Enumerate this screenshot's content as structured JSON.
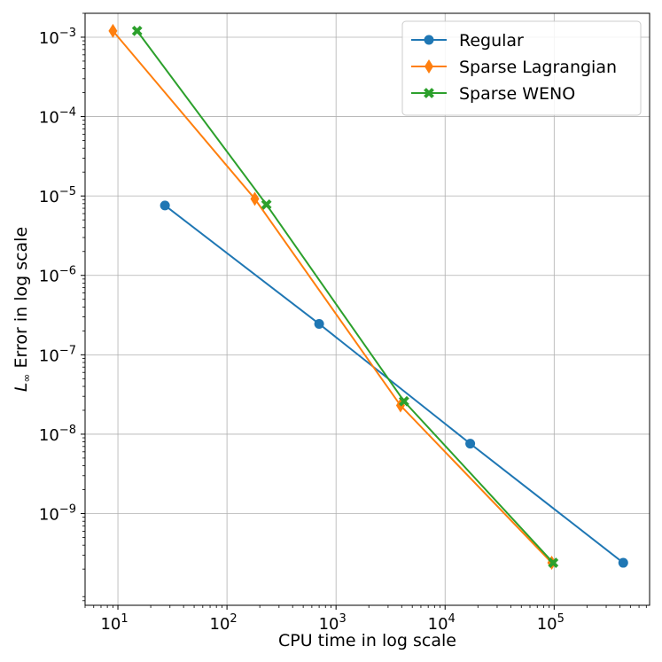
{
  "chart_data": {
    "type": "line",
    "xlabel": "CPU time in log scale",
    "ylabel_prefix": "L",
    "ylabel_subscript": "∞",
    "ylabel_rest": " Error in log scale",
    "xscale": "log",
    "yscale": "log",
    "xlim": [
      5,
      750000
    ],
    "ylim": [
      7e-11,
      0.002
    ],
    "grid": true,
    "legend_position": "top-right",
    "x_ticks": [
      {
        "value": 10,
        "base": "10",
        "exp": "1"
      },
      {
        "value": 100,
        "base": "10",
        "exp": "2"
      },
      {
        "value": 1000,
        "base": "10",
        "exp": "3"
      },
      {
        "value": 10000,
        "base": "10",
        "exp": "4"
      },
      {
        "value": 100000,
        "base": "10",
        "exp": "5"
      }
    ],
    "y_ticks": [
      {
        "value": 1e-09,
        "base": "10",
        "exp": "−9"
      },
      {
        "value": 1e-08,
        "base": "10",
        "exp": "−8"
      },
      {
        "value": 1e-07,
        "base": "10",
        "exp": "−7"
      },
      {
        "value": 1e-06,
        "base": "10",
        "exp": "−6"
      },
      {
        "value": 1e-05,
        "base": "10",
        "exp": "−5"
      },
      {
        "value": 0.0001,
        "base": "10",
        "exp": "−4"
      },
      {
        "value": 0.001,
        "base": "10",
        "exp": "−3"
      }
    ],
    "series": [
      {
        "name": "Regular",
        "color": "#1f77b4",
        "marker": "circle",
        "x": [
          27,
          700,
          17000,
          430000
        ],
        "y": [
          7.6e-06,
          2.45e-07,
          7.6e-09,
          2.4e-10
        ]
      },
      {
        "name": "Sparse Lagrangian",
        "color": "#ff7f0e",
        "marker": "diamond",
        "x": [
          9,
          180,
          3900,
          95000
        ],
        "y": [
          0.0012,
          9.2e-06,
          2.3e-08,
          2.4e-10
        ]
      },
      {
        "name": "Sparse WENO",
        "color": "#2ca02c",
        "marker": "x",
        "x": [
          15,
          230,
          4200,
          98000
        ],
        "y": [
          0.0012,
          7.8e-06,
          2.6e-08,
          2.4e-10
        ]
      }
    ]
  }
}
